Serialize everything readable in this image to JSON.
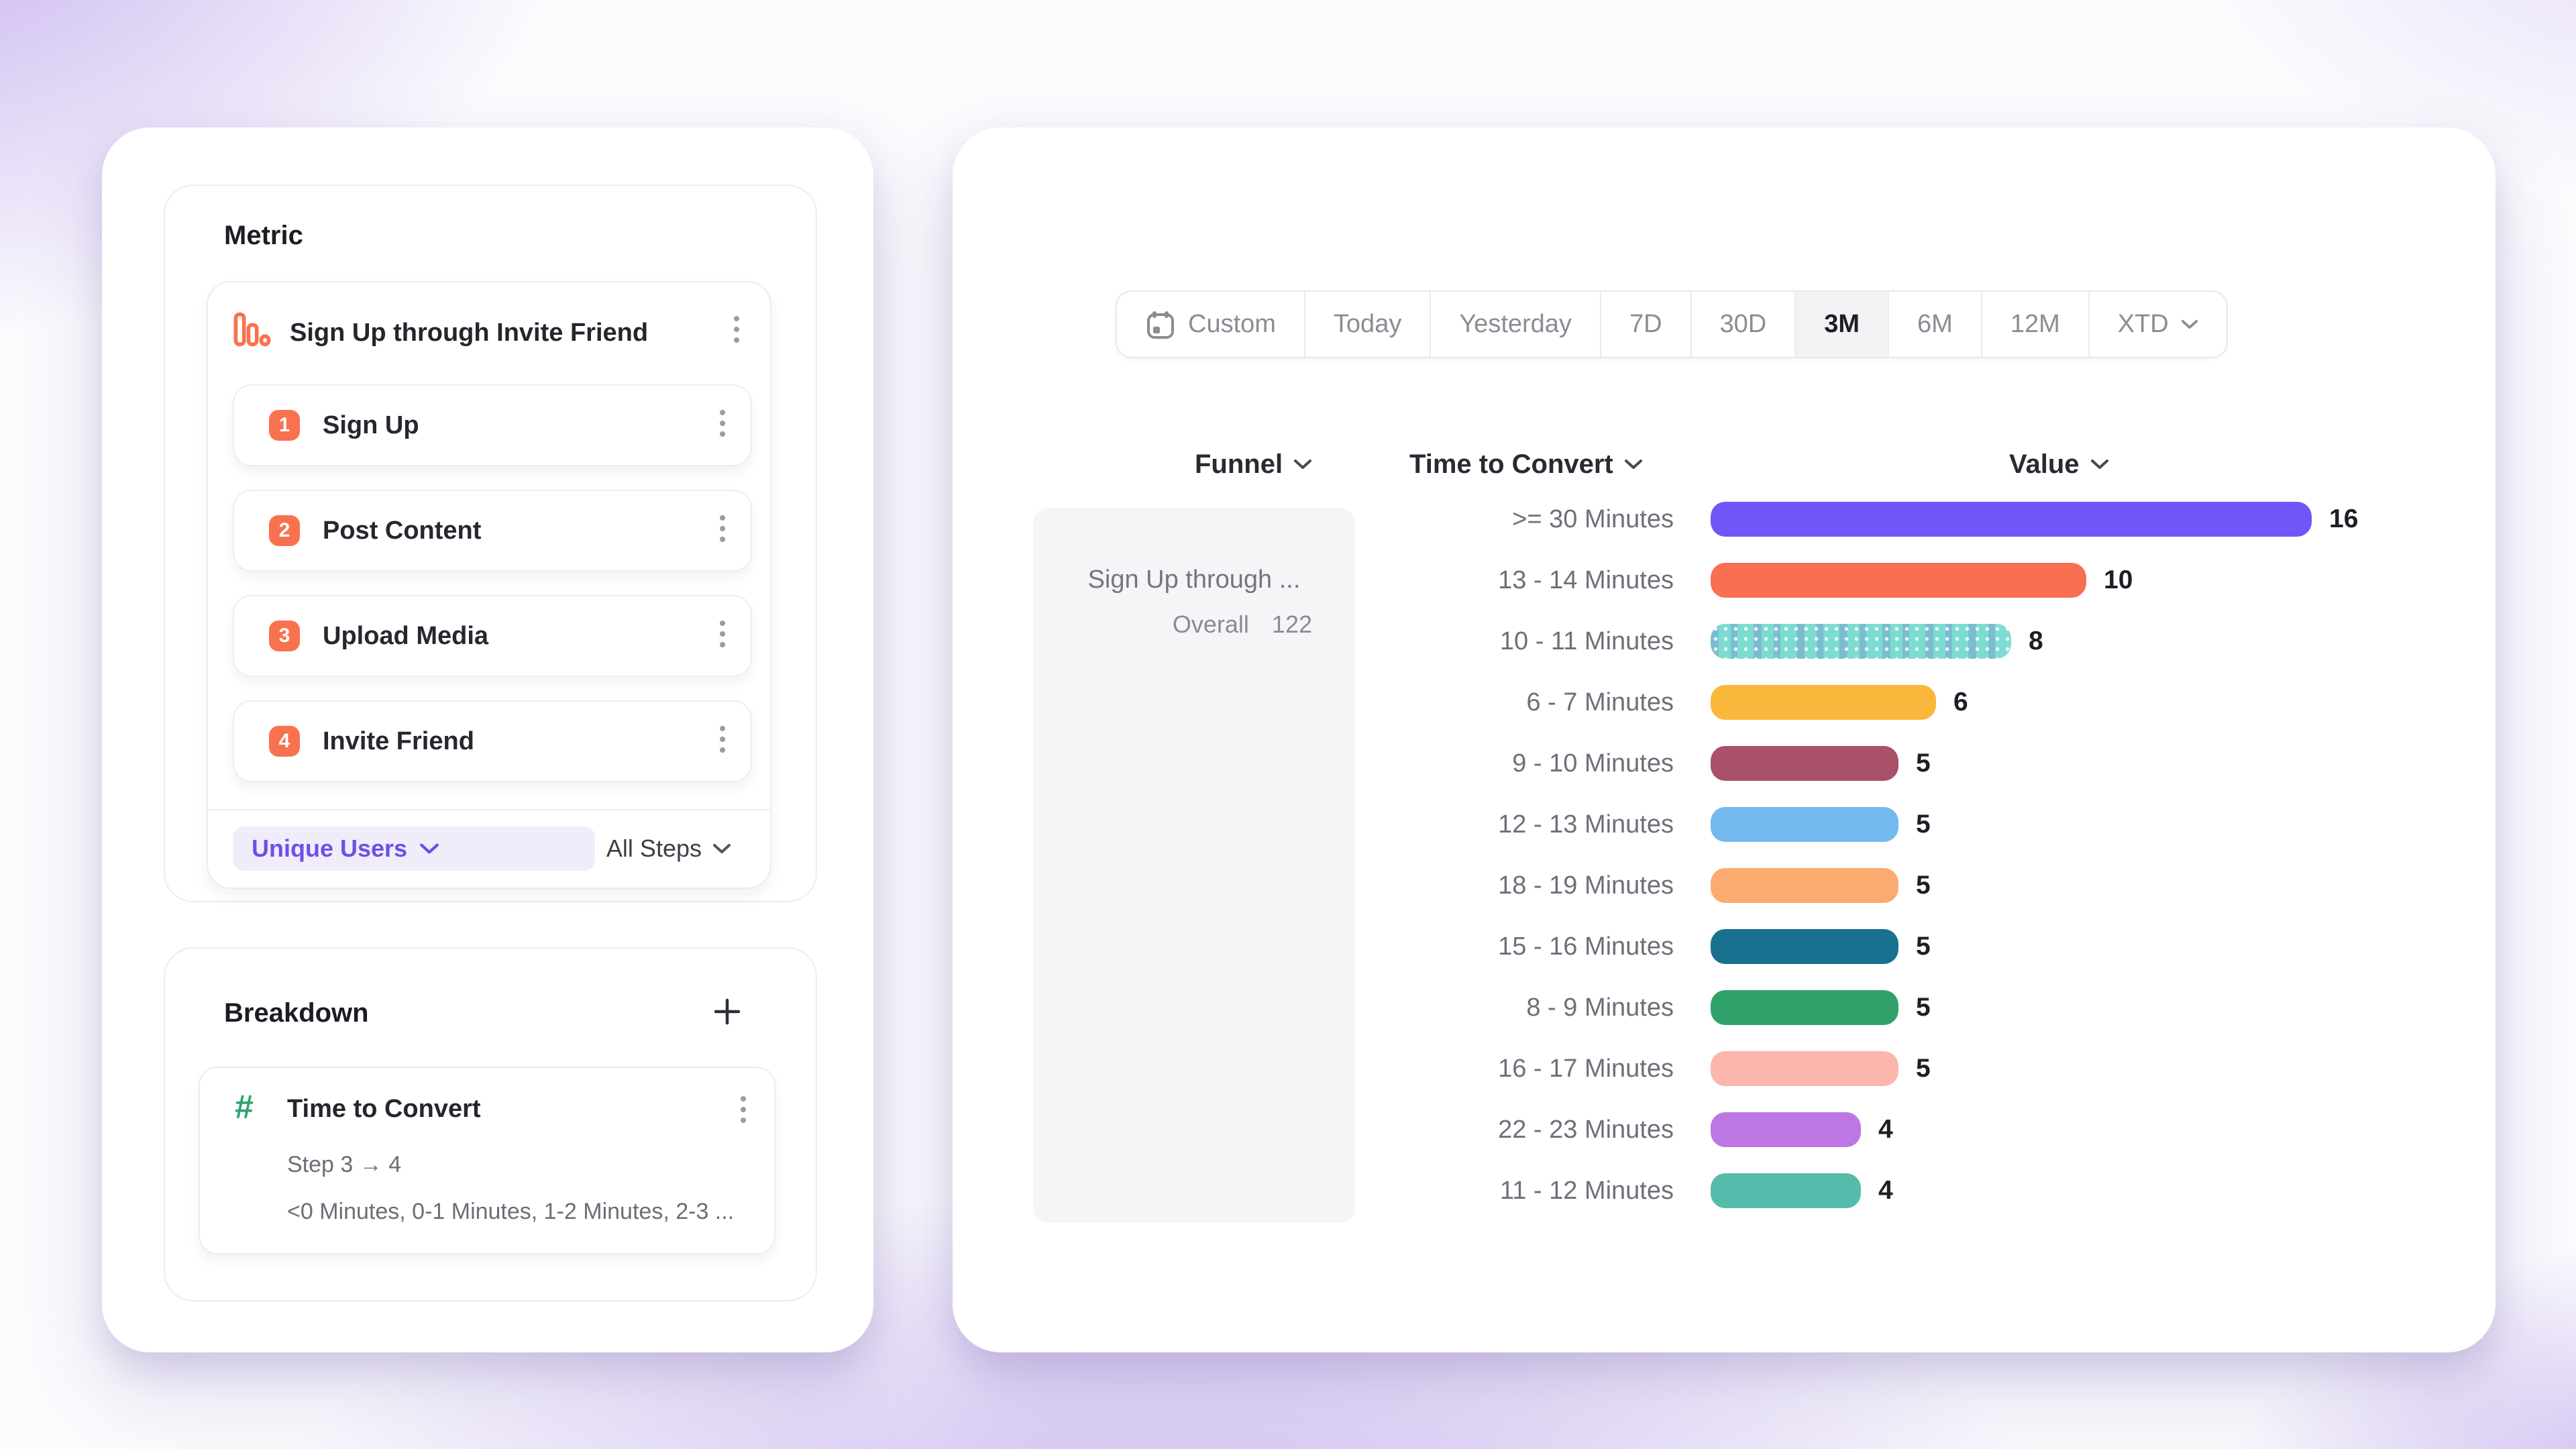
{
  "colors": {
    "step_badge": "#F9724F",
    "accent_purple": "#6C50E8",
    "pill_background": "#F1ECFA",
    "hash_icon_green": "#2FA36E",
    "selected_segment_background": "#F3F2F4",
    "funnel_panel_background": "#F5F4F6",
    "card_background": "#FFFFFF"
  },
  "left_panel": {
    "metric_section": {
      "heading": "Metric",
      "funnel_card": {
        "icon": "funnel-bars-icon",
        "title": "Sign Up through Invite Friend",
        "steps": [
          {
            "num": "1",
            "label": "Sign Up"
          },
          {
            "num": "2",
            "label": "Post Content"
          },
          {
            "num": "3",
            "label": "Upload Media"
          },
          {
            "num": "4",
            "label": "Invite Friend"
          }
        ],
        "measurement": {
          "label": "Unique Users"
        },
        "scope": {
          "label": "All Steps"
        }
      }
    },
    "breakdown_section": {
      "heading": "Breakdown",
      "property_card": {
        "icon": "hash-icon",
        "title": "Time to Convert",
        "step_range": "Step 3 → 4",
        "values_preview": "<0 Minutes, 0-1 Minutes, 1-2 Minutes, 2-3 ..."
      }
    }
  },
  "right_panel": {
    "time_range": {
      "selected": "3M",
      "options": [
        {
          "label": "Custom",
          "icon": "calendar"
        },
        {
          "label": "Today"
        },
        {
          "label": "Yesterday"
        },
        {
          "label": "7D"
        },
        {
          "label": "30D"
        },
        {
          "label": "3M"
        },
        {
          "label": "6M"
        },
        {
          "label": "12M"
        },
        {
          "label": "XTD",
          "chevron": true
        }
      ]
    },
    "column_headers": [
      {
        "label": "Funnel"
      },
      {
        "label": "Time to Convert"
      },
      {
        "label": "Value"
      }
    ],
    "funnel_panel": {
      "title": "Sign Up through ...",
      "overall_label": "Overall",
      "overall_value": "122"
    }
  },
  "chart_data": {
    "type": "bar",
    "orientation": "horizontal",
    "categories": [
      ">= 30 Minutes",
      "13 - 14 Minutes",
      "10 - 11 Minutes",
      "6 - 7 Minutes",
      "9 - 10 Minutes",
      "12 - 13 Minutes",
      "18 - 19 Minutes",
      "15 - 16 Minutes",
      "8 - 9 Minutes",
      "16 - 17 Minutes",
      "22 - 23 Minutes",
      "11 - 12 Minutes"
    ],
    "values": [
      16,
      10,
      8,
      6,
      5,
      5,
      5,
      5,
      5,
      5,
      4,
      4
    ],
    "bar_colors": [
      "#7155F8",
      "#F96F52",
      "#7DDCD2",
      "#F9B73B",
      "#A85168",
      "#72B9EF",
      "#FBAA70",
      "#17718F",
      "#30A269",
      "#FCB6AB",
      "#BD77E3",
      "#55BCAB"
    ],
    "striped_category": "10 - 11 Minutes",
    "xlim": [
      0,
      16
    ],
    "value_labels_shown": true,
    "gridlines": false,
    "legend": "none"
  }
}
